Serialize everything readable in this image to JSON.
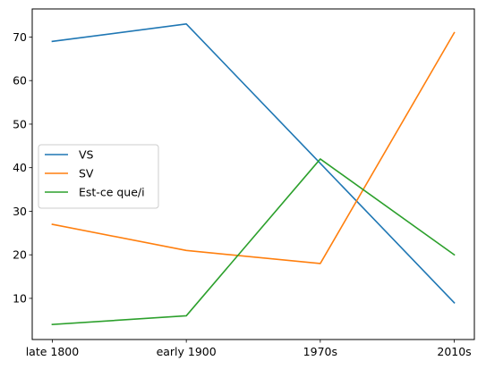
{
  "chart_data": {
    "type": "line",
    "categories": [
      "late 1800",
      "early 1900",
      "1970s",
      "2010s"
    ],
    "series": [
      {
        "name": "VS",
        "values": [
          69,
          73,
          41,
          9
        ],
        "color": "#1f77b4"
      },
      {
        "name": "SV",
        "values": [
          27,
          21,
          18,
          71
        ],
        "color": "#ff7f0e"
      },
      {
        "name": "Est-ce que/i",
        "values": [
          4,
          6,
          42,
          20
        ],
        "color": "#2ca02c"
      }
    ],
    "title": "",
    "xlabel": "",
    "ylabel": "",
    "ylim": [
      0.55,
      76.45
    ],
    "yticks": [
      10,
      20,
      30,
      40,
      50,
      60,
      70
    ],
    "grid": false,
    "legend_position": "center-left"
  }
}
